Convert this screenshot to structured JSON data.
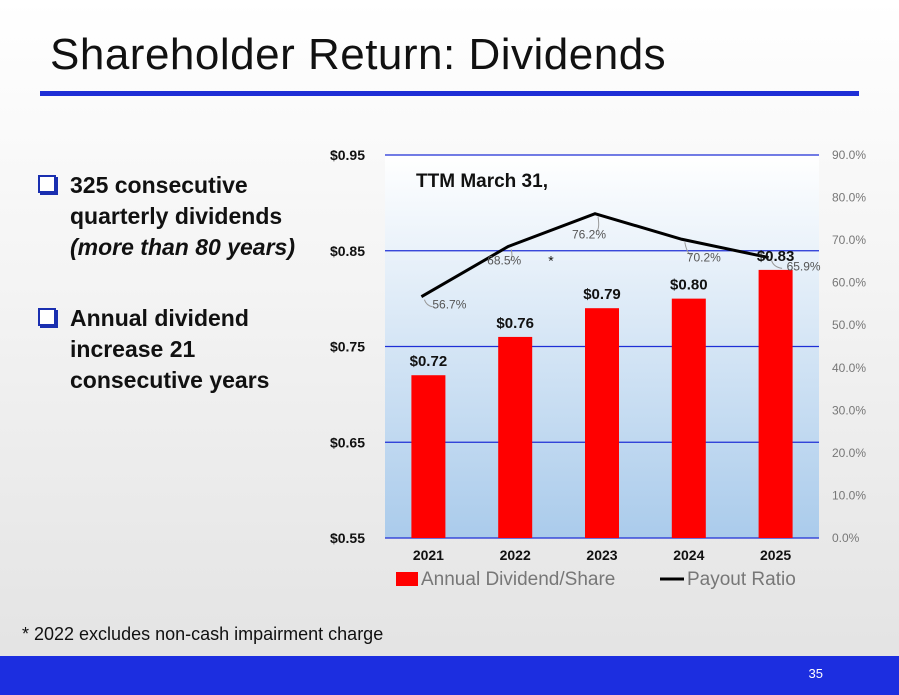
{
  "slide": {
    "title": "Shareholder Return: Dividends",
    "page_number": "35",
    "footnote": "* 2022 excludes non-cash impairment charge"
  },
  "bullets": [
    {
      "main": "325 consecutive quarterly dividends",
      "sub": "(more than 80 years)"
    },
    {
      "main": "Annual dividend increase 21 consecutive years",
      "sub": ""
    }
  ],
  "colors": {
    "accent": "#1f2fd6",
    "bar": "#ff0000",
    "line": "#000000"
  },
  "chart_data": {
    "type": "bar",
    "title": "TTM March 31,",
    "categories": [
      "2021",
      "2022",
      "2023",
      "2024",
      "2025"
    ],
    "series": [
      {
        "name": "Annual Dividend/Share",
        "type": "bar",
        "axis": "left",
        "values": [
          0.72,
          0.76,
          0.79,
          0.8,
          0.83
        ],
        "labels": [
          "$0.72",
          "$0.76",
          "$0.79",
          "$0.80",
          "$0.83"
        ]
      },
      {
        "name": "Payout Ratio",
        "type": "line",
        "axis": "right",
        "values": [
          56.7,
          68.5,
          76.2,
          70.2,
          65.9
        ],
        "labels": [
          "56.7%",
          "68.5%",
          "76.2%",
          "70.2%",
          "65.9%"
        ]
      }
    ],
    "left_axis": {
      "min": 0.55,
      "max": 0.95,
      "ticks": [
        0.55,
        0.65,
        0.75,
        0.85,
        0.95
      ],
      "tick_labels": [
        "$0.55",
        "$0.65",
        "$0.75",
        "$0.85",
        "$0.95"
      ]
    },
    "right_axis": {
      "min": 0,
      "max": 90,
      "ticks": [
        0,
        10,
        20,
        30,
        40,
        50,
        60,
        70,
        80,
        90
      ],
      "tick_labels": [
        "0.0%",
        "10.0%",
        "20.0%",
        "30.0%",
        "40.0%",
        "50.0%",
        "60.0%",
        "70.0%",
        "80.0%",
        "90.0%"
      ]
    },
    "annotation": "*",
    "legend": [
      "Annual Dividend/Share",
      "Payout Ratio"
    ],
    "legend_position": "bottom"
  }
}
